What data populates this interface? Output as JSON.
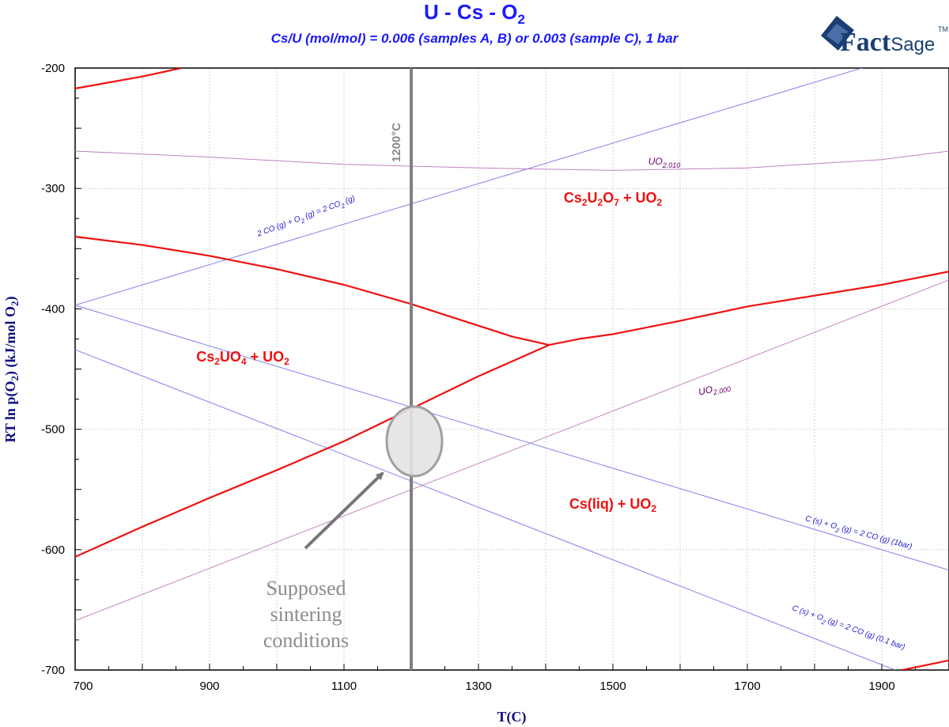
{
  "title": "U - Cs - O",
  "title_subscript": "2",
  "subtitle": "Cs/U (mol/mol) = 0.006 (samples A, B) or 0.003 (sample C), 1 bar",
  "logo": {
    "text_bold": "Fact",
    "text_light": "Sage",
    "tm": "TM"
  },
  "colors": {
    "phase_boundary": "#ee1111",
    "co_lines": "#8080ee",
    "uo2_lines": "#c080c0",
    "isotherm": "#808080",
    "ellipse_fill": "#e3e3e3",
    "ellipse_stroke": "#a0a0a0",
    "title": "#1a1aff",
    "axis_title": "#0d0d80"
  },
  "chart_data": {
    "type": "line",
    "xlabel": "T(C)",
    "ylabel_parts": [
      "RT ln p(O",
      "2",
      ") (kJ/mol O",
      "2",
      ")"
    ],
    "xlim": [
      700,
      2000
    ],
    "ylim": [
      -700,
      -200
    ],
    "xticks": [
      700,
      900,
      1100,
      1300,
      1500,
      1700,
      1900
    ],
    "yticks": [
      -200,
      -300,
      -400,
      -500,
      -600,
      -700
    ],
    "grid": true,
    "phase_boundaries": [
      {
        "id": "top-left-boundary",
        "points": [
          [
            700,
            -217
          ],
          [
            800,
            -207
          ],
          [
            858,
            -200
          ]
        ]
      },
      {
        "id": "cs2uo4-cs2u2o7-boundary",
        "points": [
          [
            700,
            -340
          ],
          [
            800,
            -347
          ],
          [
            900,
            -356
          ],
          [
            1000,
            -367
          ],
          [
            1100,
            -380
          ],
          [
            1200,
            -396
          ],
          [
            1300,
            -414
          ],
          [
            1350,
            -423
          ],
          [
            1405,
            -430
          ]
        ]
      },
      {
        "id": "cs2u2o7-csliq-boundary",
        "points": [
          [
            1405,
            -430
          ],
          [
            1450,
            -425
          ],
          [
            1500,
            -421
          ],
          [
            1600,
            -410
          ],
          [
            1700,
            -398
          ],
          [
            1800,
            -389
          ],
          [
            1900,
            -380
          ],
          [
            2000,
            -369
          ]
        ]
      },
      {
        "id": "cs2uo4-csliq-boundary",
        "points": [
          [
            700,
            -606
          ],
          [
            800,
            -581
          ],
          [
            900,
            -557
          ],
          [
            1000,
            -534
          ],
          [
            1100,
            -510
          ],
          [
            1200,
            -483
          ],
          [
            1300,
            -456
          ],
          [
            1405,
            -430
          ]
        ]
      },
      {
        "id": "bottom-right-boundary",
        "points": [
          [
            1930,
            -700
          ],
          [
            2000,
            -692
          ]
        ]
      }
    ],
    "reference_lines": [
      {
        "id": "co-co2-line",
        "label_parts": [
          "2 CO (g) + O",
          "2",
          " (g) = 2 CO",
          "2",
          " (g)"
        ],
        "points": [
          [
            700,
            -397
          ],
          [
            1900,
            -195
          ]
        ]
      },
      {
        "id": "c-co-1bar-line",
        "label_parts": [
          "C (s) + O",
          "2",
          " (g) = 2 CO (g) (1bar)"
        ],
        "points": [
          [
            700,
            -397
          ],
          [
            2000,
            -617
          ]
        ]
      },
      {
        "id": "c-co-0.1bar-line",
        "label_parts": [
          "C (s) + O",
          "2",
          " (g) = 2 CO (g) (0.1 bar)"
        ],
        "points": [
          [
            700,
            -434
          ],
          [
            1920,
            -700
          ]
        ]
      },
      {
        "id": "uo2-010-line",
        "label_parts": [
          "UO",
          "2.010"
        ],
        "points": [
          [
            700,
            -269
          ],
          [
            900,
            -274
          ],
          [
            1100,
            -280
          ],
          [
            1300,
            -283
          ],
          [
            1500,
            -285
          ],
          [
            1700,
            -283
          ],
          [
            1900,
            -276
          ],
          [
            2000,
            -269
          ]
        ]
      },
      {
        "id": "uo2-000-line",
        "label_parts": [
          "UO",
          "2.000"
        ],
        "points": [
          [
            700,
            -659
          ],
          [
            2000,
            -376
          ]
        ]
      }
    ],
    "isotherm": {
      "x": 1200,
      "label": "1200°C"
    },
    "regions": [
      {
        "id": "cs2u2o7-uo2",
        "parts": [
          "Cs",
          "2",
          "U",
          "2",
          "O",
          "7",
          " + UO",
          "2"
        ],
        "sub": [
          false,
          true,
          false,
          true,
          false,
          true,
          false,
          true
        ]
      },
      {
        "id": "cs2uo4-uo2",
        "parts": [
          "Cs",
          "2",
          "UO",
          "4",
          " + UO",
          "2"
        ],
        "sub": [
          false,
          true,
          false,
          true,
          false,
          true
        ]
      },
      {
        "id": "csliq-uo2",
        "parts": [
          "Cs(liq) + UO",
          "2"
        ],
        "sub": [
          false,
          true
        ]
      }
    ],
    "highlight": {
      "center": [
        1200,
        -510
      ],
      "annotation_lines": [
        "Supposed",
        "sintering",
        "conditions"
      ]
    }
  }
}
